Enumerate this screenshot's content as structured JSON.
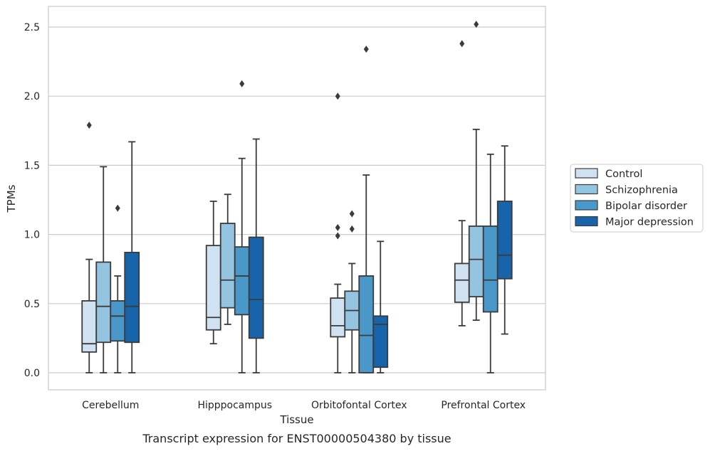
{
  "caption": "Transcript expression for ENST00000504380 by tissue",
  "chart_data": {
    "type": "box",
    "xlabel": "Tissue",
    "ylabel": "TPMs",
    "ylim": [
      -0.12,
      2.65
    ],
    "yticks": [
      0.0,
      0.5,
      1.0,
      1.5,
      2.0,
      2.5
    ],
    "ytick_labels": [
      "0.0",
      "0.5",
      "1.0",
      "1.5",
      "2.0",
      "2.5"
    ],
    "grid": "horizontal",
    "legend_position": "right",
    "categories": [
      "Cerebellum",
      "Hipppocampus",
      "Orbitofontal Cortex",
      "Prefrontal Cortex"
    ],
    "series": [
      {
        "name": "Control",
        "color": "#d0e1f2",
        "boxes": [
          {
            "whisker_low": 0.0,
            "q1": 0.15,
            "median": 0.21,
            "q3": 0.52,
            "whisker_high": 0.82,
            "outliers": [
              1.79
            ]
          },
          {
            "whisker_low": 0.21,
            "q1": 0.31,
            "median": 0.4,
            "q3": 0.92,
            "whisker_high": 1.24,
            "outliers": []
          },
          {
            "whisker_low": 0.0,
            "q1": 0.26,
            "median": 0.34,
            "q3": 0.54,
            "whisker_high": 0.64,
            "outliers": [
              0.99,
              1.05,
              2.0
            ]
          },
          {
            "whisker_low": 0.34,
            "q1": 0.51,
            "median": 0.67,
            "q3": 0.79,
            "whisker_high": 1.1,
            "outliers": [
              2.38
            ]
          }
        ]
      },
      {
        "name": "Schizophrenia",
        "color": "#94c4df",
        "boxes": [
          {
            "whisker_low": 0.0,
            "q1": 0.22,
            "median": 0.48,
            "q3": 0.8,
            "whisker_high": 1.49,
            "outliers": []
          },
          {
            "whisker_low": 0.35,
            "q1": 0.47,
            "median": 0.67,
            "q3": 1.08,
            "whisker_high": 1.29,
            "outliers": []
          },
          {
            "whisker_low": 0.0,
            "q1": 0.31,
            "median": 0.45,
            "q3": 0.59,
            "whisker_high": 0.79,
            "outliers": [
              1.04,
              1.15
            ]
          },
          {
            "whisker_low": 0.38,
            "q1": 0.55,
            "median": 0.82,
            "q3": 1.06,
            "whisker_high": 1.76,
            "outliers": [
              2.52
            ]
          }
        ]
      },
      {
        "name": "Bipolar disorder",
        "color": "#4a98c9",
        "boxes": [
          {
            "whisker_low": 0.0,
            "q1": 0.23,
            "median": 0.41,
            "q3": 0.52,
            "whisker_high": 0.7,
            "outliers": [
              1.19
            ]
          },
          {
            "whisker_low": 0.0,
            "q1": 0.42,
            "median": 0.7,
            "q3": 0.91,
            "whisker_high": 1.55,
            "outliers": [
              2.09
            ]
          },
          {
            "whisker_low": 0.0,
            "q1": 0.0,
            "median": 0.27,
            "q3": 0.7,
            "whisker_high": 1.43,
            "outliers": [
              2.34
            ]
          },
          {
            "whisker_low": 0.0,
            "q1": 0.44,
            "median": 0.67,
            "q3": 1.06,
            "whisker_high": 1.58,
            "outliers": []
          }
        ]
      },
      {
        "name": "Major depression",
        "color": "#1764ab",
        "boxes": [
          {
            "whisker_low": 0.0,
            "q1": 0.22,
            "median": 0.48,
            "q3": 0.87,
            "whisker_high": 1.67,
            "outliers": []
          },
          {
            "whisker_low": 0.0,
            "q1": 0.25,
            "median": 0.53,
            "q3": 0.98,
            "whisker_high": 1.69,
            "outliers": []
          },
          {
            "whisker_low": 0.0,
            "q1": 0.04,
            "median": 0.35,
            "q3": 0.41,
            "whisker_high": 0.95,
            "outliers": []
          },
          {
            "whisker_low": 0.28,
            "q1": 0.68,
            "median": 0.85,
            "q3": 1.24,
            "whisker_high": 1.64,
            "outliers": []
          }
        ]
      }
    ]
  }
}
